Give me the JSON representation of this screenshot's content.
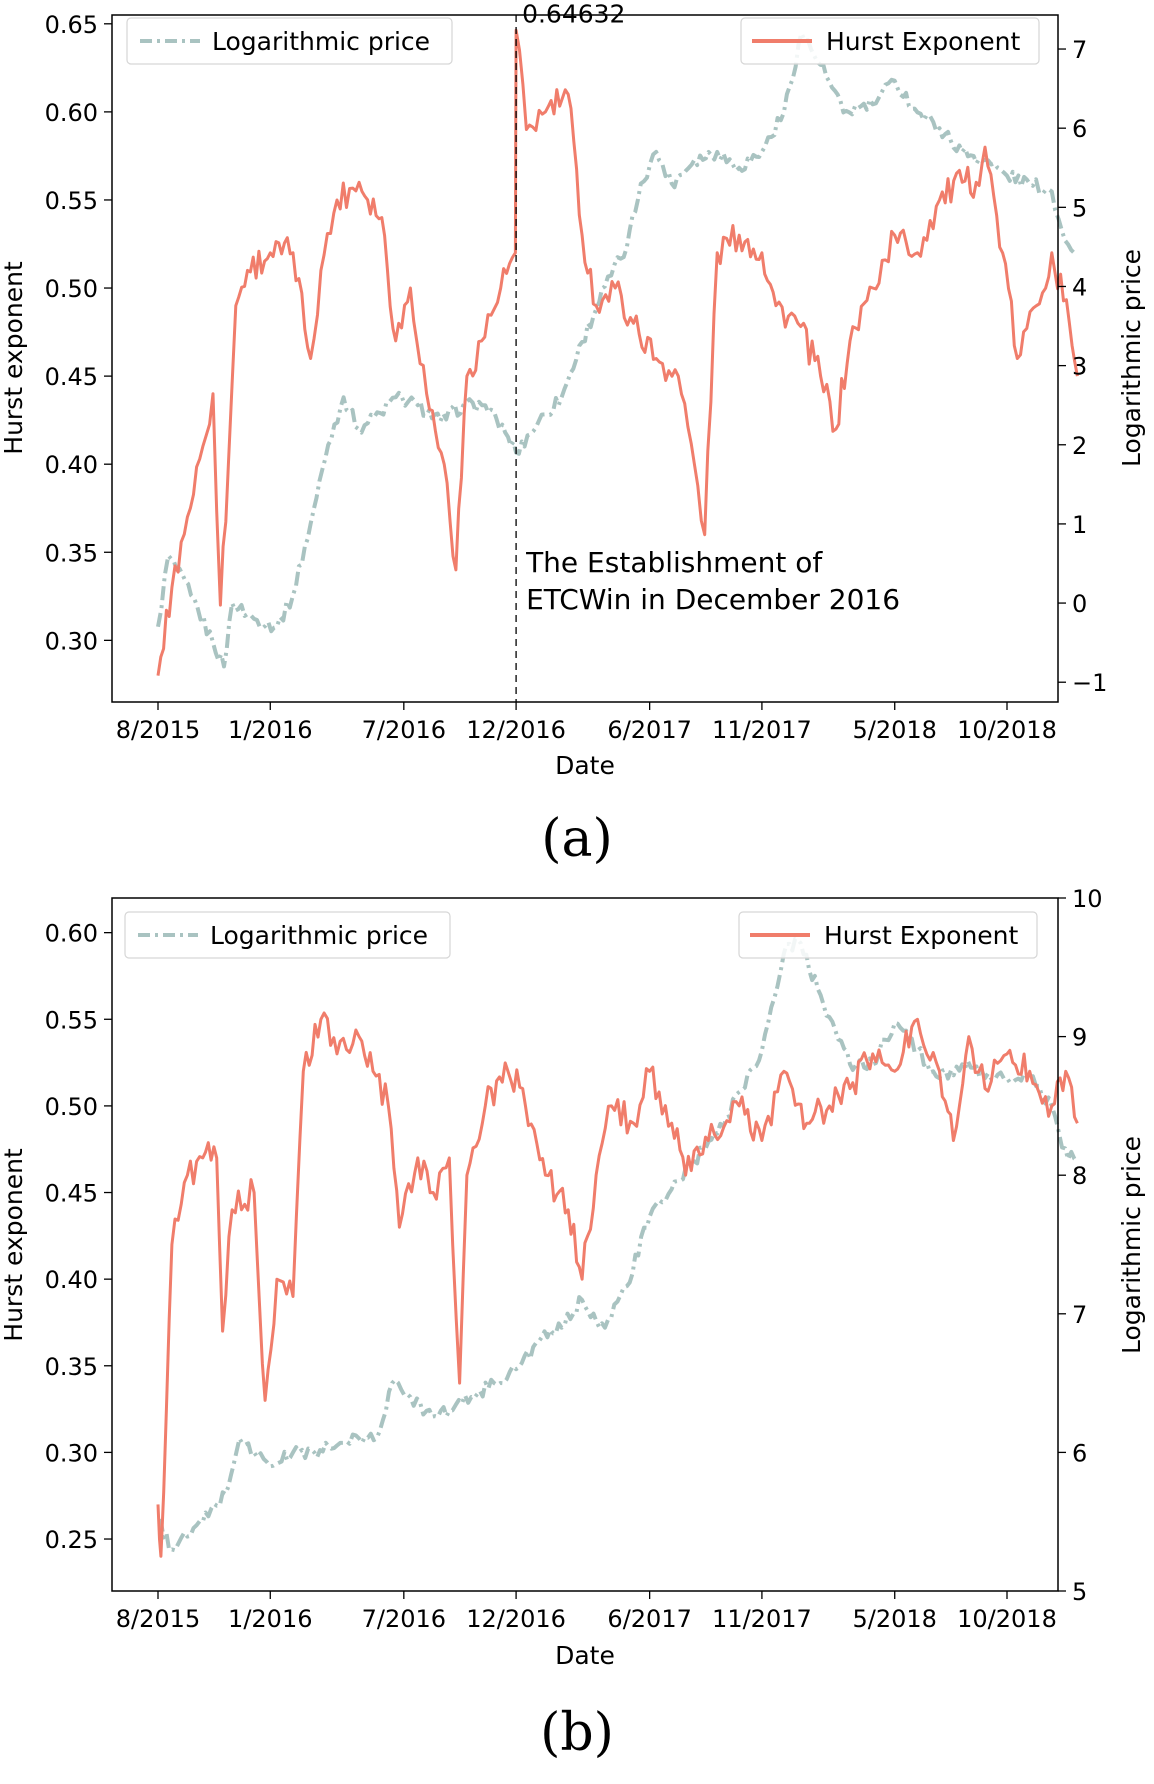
{
  "chart_data": [
    {
      "type": "line",
      "panel_label": "(a)",
      "xlabel": "Date",
      "ylabel_left": "Hurst exponent",
      "ylabel_right": "Logarithmic price",
      "x_ticks": [
        "8/2015",
        "1/2016",
        "7/2016",
        "12/2016",
        "6/2017",
        "11/2017",
        "5/2018",
        "10/2018"
      ],
      "x_tick_dates": [
        "2015-08-01",
        "2016-01-01",
        "2016-07-01",
        "2016-12-01",
        "2017-06-01",
        "2017-11-01",
        "2018-05-01",
        "2018-10-01"
      ],
      "ylim_left": [
        0.265,
        0.655
      ],
      "ylim_right": [
        -1.25,
        7.43
      ],
      "y_ticks_left": [
        "0.30",
        "0.35",
        "0.40",
        "0.45",
        "0.50",
        "0.55",
        "0.60",
        "0.65"
      ],
      "y_ticks_right": [
        "−1",
        "0",
        "1",
        "2",
        "3",
        "4",
        "5",
        "6",
        "7"
      ],
      "grid": false,
      "legend": [
        {
          "label": "Logarithmic price",
          "placement": "top-left",
          "color": "#a9c3c1",
          "style": "dashdot"
        },
        {
          "label": "Hurst Exponent",
          "placement": "top-right",
          "color": "#f07d6b",
          "style": "solid"
        }
      ],
      "annotations": {
        "vline_date": "2016-12-01",
        "peak_label": "0.64632",
        "note_line1": "The Establishment of",
        "note_line2": "ETCWin in December 2016"
      },
      "series": [
        {
          "name": "Hurst Exponent",
          "axis": "left",
          "color": "#f07d6b",
          "style": "solid",
          "points": [
            [
              "2015-08-01",
              0.28
            ],
            [
              "2015-08-20",
              0.33
            ],
            [
              "2015-09-10",
              0.37
            ],
            [
              "2015-10-01",
              0.41
            ],
            [
              "2015-10-15",
              0.44
            ],
            [
              "2015-10-25",
              0.32
            ],
            [
              "2015-11-05",
              0.4
            ],
            [
              "2015-11-15",
              0.49
            ],
            [
              "2015-12-01",
              0.51
            ],
            [
              "2016-01-01",
              0.52
            ],
            [
              "2016-02-01",
              0.52
            ],
            [
              "2016-02-25",
              0.46
            ],
            [
              "2016-03-10",
              0.51
            ],
            [
              "2016-04-01",
              0.55
            ],
            [
              "2016-05-01",
              0.56
            ],
            [
              "2016-06-01",
              0.54
            ],
            [
              "2016-06-20",
              0.47
            ],
            [
              "2016-07-10",
              0.5
            ],
            [
              "2016-08-01",
              0.44
            ],
            [
              "2016-08-25",
              0.4
            ],
            [
              "2016-09-10",
              0.34
            ],
            [
              "2016-09-25",
              0.45
            ],
            [
              "2016-10-15",
              0.47
            ],
            [
              "2016-11-10",
              0.5
            ],
            [
              "2016-11-30",
              0.52
            ],
            [
              "2016-12-01",
              0.64632
            ],
            [
              "2016-12-15",
              0.59
            ],
            [
              "2017-01-10",
              0.6
            ],
            [
              "2017-02-10",
              0.61
            ],
            [
              "2017-03-01",
              0.53
            ],
            [
              "2017-03-20",
              0.49
            ],
            [
              "2017-04-15",
              0.5
            ],
            [
              "2017-05-10",
              0.48
            ],
            [
              "2017-06-10",
              0.46
            ],
            [
              "2017-07-10",
              0.45
            ],
            [
              "2017-08-01",
              0.4
            ],
            [
              "2017-08-15",
              0.36
            ],
            [
              "2017-09-01",
              0.52
            ],
            [
              "2017-10-01",
              0.53
            ],
            [
              "2017-11-01",
              0.52
            ],
            [
              "2017-11-20",
              0.49
            ],
            [
              "2017-12-20",
              0.48
            ],
            [
              "2018-01-20",
              0.45
            ],
            [
              "2018-02-10",
              0.42
            ],
            [
              "2018-03-01",
              0.47
            ],
            [
              "2018-04-01",
              0.5
            ],
            [
              "2018-05-01",
              0.53
            ],
            [
              "2018-06-01",
              0.52
            ],
            [
              "2018-07-01",
              0.55
            ],
            [
              "2018-08-01",
              0.56
            ],
            [
              "2018-08-20",
              0.56
            ],
            [
              "2018-09-01",
              0.58
            ],
            [
              "2018-09-25",
              0.52
            ],
            [
              "2018-10-15",
              0.46
            ],
            [
              "2018-11-10",
              0.49
            ],
            [
              "2018-12-01",
              0.52
            ],
            [
              "2018-12-25",
              0.48
            ],
            [
              "2019-01-05",
              0.45
            ]
          ]
        },
        {
          "name": "Logarithmic price",
          "axis": "right",
          "color": "#a9c3c1",
          "style": "dashdot",
          "points": [
            [
              "2015-08-01",
              -0.3
            ],
            [
              "2015-08-15",
              0.6
            ],
            [
              "2015-09-15",
              0.1
            ],
            [
              "2015-10-15",
              -0.5
            ],
            [
              "2015-10-30",
              -0.8
            ],
            [
              "2015-11-10",
              0.0
            ],
            [
              "2015-12-10",
              -0.2
            ],
            [
              "2016-01-10",
              -0.3
            ],
            [
              "2016-02-01",
              0.1
            ],
            [
              "2016-02-25",
              1.0
            ],
            [
              "2016-03-20",
              2.0
            ],
            [
              "2016-04-10",
              2.6
            ],
            [
              "2016-04-30",
              2.2
            ],
            [
              "2016-05-30",
              2.4
            ],
            [
              "2016-06-20",
              2.6
            ],
            [
              "2016-07-20",
              2.5
            ],
            [
              "2016-08-20",
              2.3
            ],
            [
              "2016-09-20",
              2.5
            ],
            [
              "2016-10-20",
              2.5
            ],
            [
              "2016-11-20",
              2.1
            ],
            [
              "2016-12-01",
              1.9
            ],
            [
              "2017-01-01",
              2.3
            ],
            [
              "2017-02-01",
              2.6
            ],
            [
              "2017-03-01",
              3.3
            ],
            [
              "2017-04-01",
              4.0
            ],
            [
              "2017-05-01",
              4.5
            ],
            [
              "2017-05-20",
              5.3
            ],
            [
              "2017-06-10",
              5.7
            ],
            [
              "2017-07-01",
              5.3
            ],
            [
              "2017-08-01",
              5.6
            ],
            [
              "2017-09-01",
              5.7
            ],
            [
              "2017-10-01",
              5.5
            ],
            [
              "2017-11-01",
              5.7
            ],
            [
              "2017-12-01",
              6.2
            ],
            [
              "2017-12-25",
              7.2
            ],
            [
              "2018-01-20",
              6.8
            ],
            [
              "2018-02-20",
              6.2
            ],
            [
              "2018-04-01",
              6.3
            ],
            [
              "2018-05-01",
              6.6
            ],
            [
              "2018-06-01",
              6.2
            ],
            [
              "2018-07-01",
              6.0
            ],
            [
              "2018-08-01",
              5.7
            ],
            [
              "2018-09-01",
              5.6
            ],
            [
              "2018-10-01",
              5.4
            ],
            [
              "2018-11-01",
              5.3
            ],
            [
              "2018-12-01",
              5.2
            ],
            [
              "2018-12-15",
              4.7
            ],
            [
              "2019-01-05",
              4.4
            ]
          ]
        }
      ]
    },
    {
      "type": "line",
      "panel_label": "(b)",
      "xlabel": "Date",
      "ylabel_left": "Hurst exponent",
      "ylabel_right": "Logarithmic price",
      "x_ticks": [
        "8/2015",
        "1/2016",
        "7/2016",
        "12/2016",
        "6/2017",
        "11/2017",
        "5/2018",
        "10/2018"
      ],
      "x_tick_dates": [
        "2015-08-01",
        "2016-01-01",
        "2016-07-01",
        "2016-12-01",
        "2017-06-01",
        "2017-11-01",
        "2018-05-01",
        "2018-10-01"
      ],
      "ylim_left": [
        0.22,
        0.62
      ],
      "ylim_right": [
        5.0,
        10.0
      ],
      "y_ticks_left": [
        "0.25",
        "0.30",
        "0.35",
        "0.40",
        "0.45",
        "0.50",
        "0.55",
        "0.60"
      ],
      "y_ticks_right": [
        "5",
        "6",
        "7",
        "8",
        "9",
        "10"
      ],
      "grid": false,
      "legend": [
        {
          "label": "Logarithmic price",
          "placement": "top-left",
          "color": "#a9c3c1",
          "style": "dashdot"
        },
        {
          "label": "Hurst Exponent",
          "placement": "top-right",
          "color": "#f07d6b",
          "style": "solid"
        }
      ],
      "series": [
        {
          "name": "Hurst Exponent",
          "axis": "left",
          "color": "#f07d6b",
          "style": "solid",
          "points": [
            [
              "2015-08-01",
              0.27
            ],
            [
              "2015-08-05",
              0.24
            ],
            [
              "2015-08-20",
              0.42
            ],
            [
              "2015-09-10",
              0.46
            ],
            [
              "2015-10-01",
              0.47
            ],
            [
              "2015-10-20",
              0.47
            ],
            [
              "2015-10-28",
              0.37
            ],
            [
              "2015-11-10",
              0.44
            ],
            [
              "2015-12-10",
              0.45
            ],
            [
              "2015-12-25",
              0.33
            ],
            [
              "2016-01-10",
              0.4
            ],
            [
              "2016-02-01",
              0.39
            ],
            [
              "2016-02-15",
              0.52
            ],
            [
              "2016-03-10",
              0.55
            ],
            [
              "2016-04-01",
              0.53
            ],
            [
              "2016-05-01",
              0.54
            ],
            [
              "2016-05-20",
              0.52
            ],
            [
              "2016-06-10",
              0.5
            ],
            [
              "2016-06-25",
              0.43
            ],
            [
              "2016-07-20",
              0.47
            ],
            [
              "2016-08-10",
              0.45
            ],
            [
              "2016-09-01",
              0.47
            ],
            [
              "2016-09-15",
              0.34
            ],
            [
              "2016-09-25",
              0.46
            ],
            [
              "2016-10-20",
              0.5
            ],
            [
              "2016-11-20",
              0.52
            ],
            [
              "2016-12-10",
              0.51
            ],
            [
              "2017-01-10",
              0.46
            ],
            [
              "2017-02-10",
              0.44
            ],
            [
              "2017-03-01",
              0.4
            ],
            [
              "2017-03-20",
              0.46
            ],
            [
              "2017-04-10",
              0.5
            ],
            [
              "2017-05-10",
              0.49
            ],
            [
              "2017-06-01",
              0.52
            ],
            [
              "2017-07-01",
              0.49
            ],
            [
              "2017-07-20",
              0.46
            ],
            [
              "2017-08-20",
              0.48
            ],
            [
              "2017-10-01",
              0.5
            ],
            [
              "2017-11-01",
              0.48
            ],
            [
              "2017-12-01",
              0.52
            ],
            [
              "2018-01-01",
              0.49
            ],
            [
              "2018-02-01",
              0.5
            ],
            [
              "2018-03-01",
              0.51
            ],
            [
              "2018-04-01",
              0.53
            ],
            [
              "2018-05-01",
              0.52
            ],
            [
              "2018-06-01",
              0.55
            ],
            [
              "2018-07-01",
              0.52
            ],
            [
              "2018-07-20",
              0.48
            ],
            [
              "2018-08-10",
              0.54
            ],
            [
              "2018-09-01",
              0.51
            ],
            [
              "2018-10-01",
              0.53
            ],
            [
              "2018-11-01",
              0.52
            ],
            [
              "2018-12-01",
              0.5
            ],
            [
              "2018-12-20",
              0.52
            ],
            [
              "2019-01-05",
              0.49
            ]
          ]
        },
        {
          "name": "Logarithmic price",
          "axis": "right",
          "color": "#a9c3c1",
          "style": "dashdot",
          "points": [
            [
              "2015-08-01",
              5.5
            ],
            [
              "2015-08-20",
              5.3
            ],
            [
              "2015-10-01",
              5.5
            ],
            [
              "2015-11-01",
              5.7
            ],
            [
              "2015-11-20",
              6.1
            ],
            [
              "2015-12-10",
              6.0
            ],
            [
              "2016-01-01",
              5.9
            ],
            [
              "2016-02-01",
              6.0
            ],
            [
              "2016-03-01",
              6.0
            ],
            [
              "2016-04-01",
              6.05
            ],
            [
              "2016-05-01",
              6.1
            ],
            [
              "2016-05-25",
              6.1
            ],
            [
              "2016-06-15",
              6.5
            ],
            [
              "2016-07-10",
              6.4
            ],
            [
              "2016-08-01",
              6.3
            ],
            [
              "2016-09-01",
              6.3
            ],
            [
              "2016-10-01",
              6.4
            ],
            [
              "2016-11-01",
              6.5
            ],
            [
              "2016-12-01",
              6.6
            ],
            [
              "2017-01-01",
              6.8
            ],
            [
              "2017-02-01",
              6.9
            ],
            [
              "2017-03-01",
              7.1
            ],
            [
              "2017-04-01",
              6.9
            ],
            [
              "2017-05-01",
              7.2
            ],
            [
              "2017-06-01",
              7.7
            ],
            [
              "2017-07-01",
              7.9
            ],
            [
              "2017-08-01",
              8.1
            ],
            [
              "2017-09-01",
              8.3
            ],
            [
              "2017-10-01",
              8.6
            ],
            [
              "2017-11-01",
              8.9
            ],
            [
              "2017-12-01",
              9.6
            ],
            [
              "2017-12-20",
              9.7
            ],
            [
              "2018-01-20",
              9.3
            ],
            [
              "2018-03-01",
              8.8
            ],
            [
              "2018-04-01",
              8.8
            ],
            [
              "2018-05-01",
              9.1
            ],
            [
              "2018-06-01",
              8.9
            ],
            [
              "2018-07-01",
              8.7
            ],
            [
              "2018-08-01",
              8.8
            ],
            [
              "2018-09-01",
              8.7
            ],
            [
              "2018-10-01",
              8.7
            ],
            [
              "2018-11-01",
              8.7
            ],
            [
              "2018-12-01",
              8.5
            ],
            [
              "2018-12-15",
              8.2
            ],
            [
              "2019-01-05",
              8.1
            ]
          ]
        }
      ]
    }
  ]
}
